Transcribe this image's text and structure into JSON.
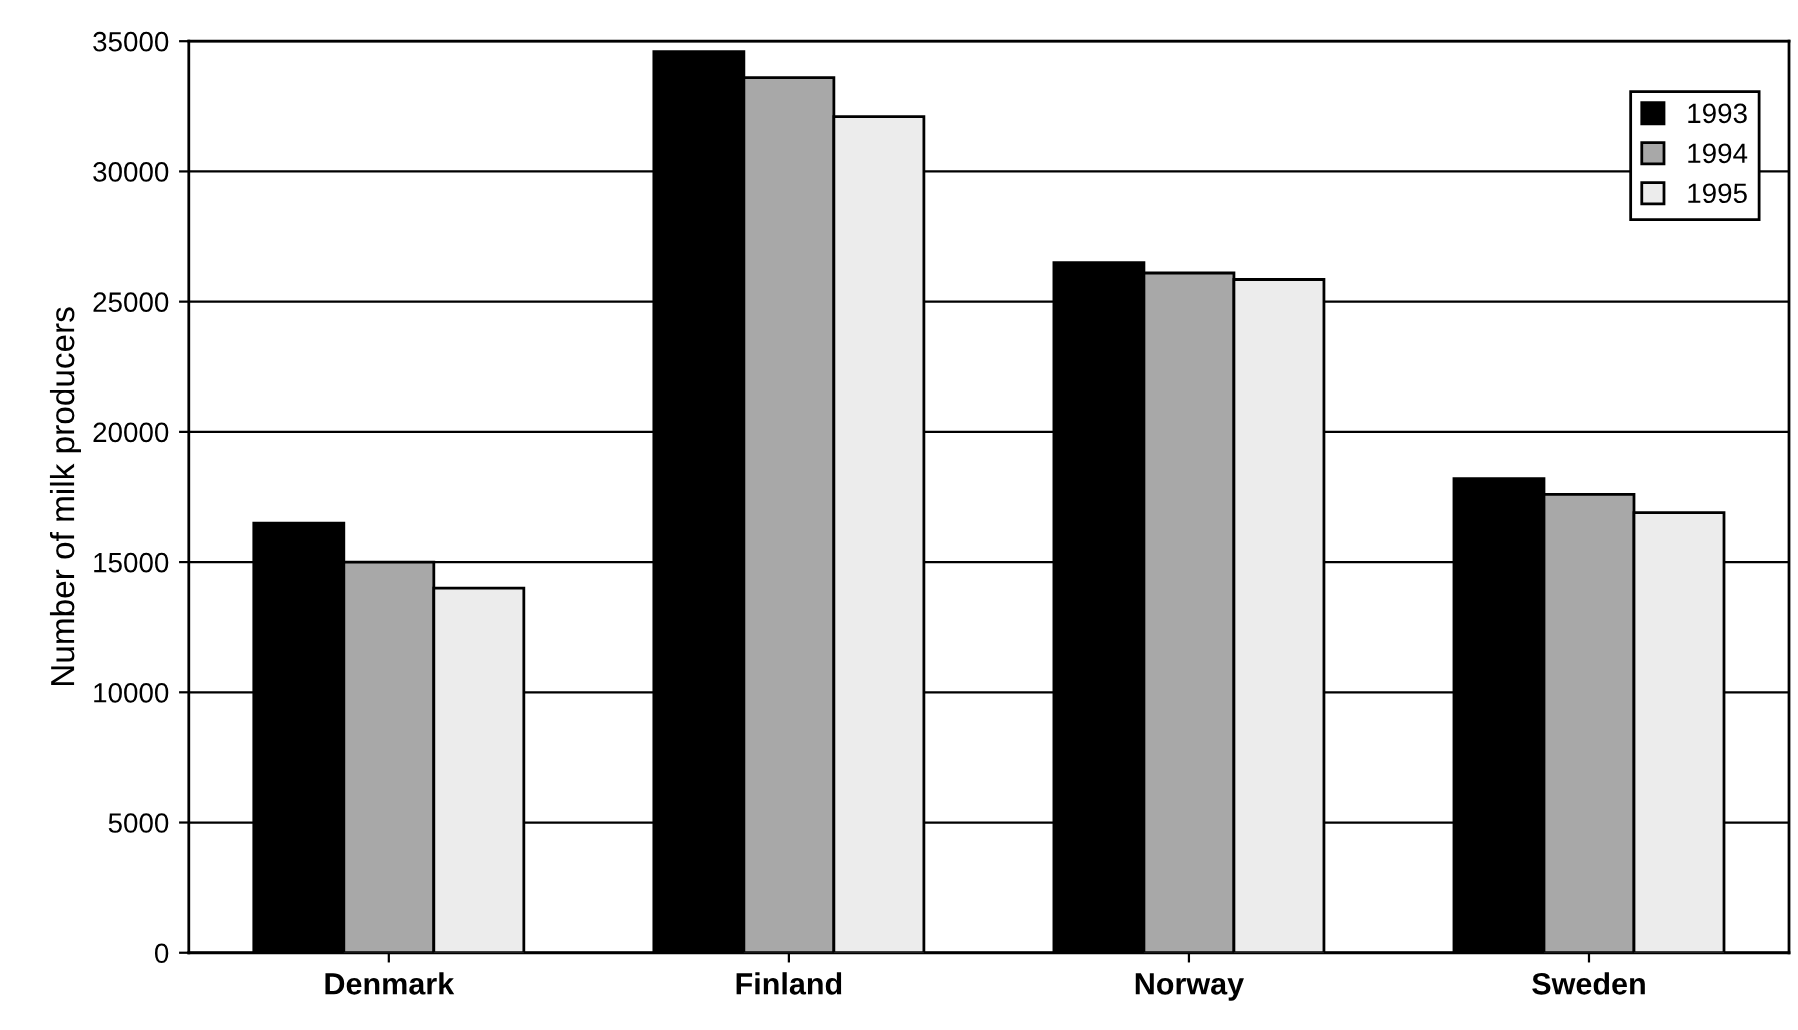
{
  "chart_data": {
    "type": "bar",
    "ylabel": "Number of milk producers",
    "categories": [
      "Denmark",
      "Finland",
      "Norway",
      "Sweden"
    ],
    "series": [
      {
        "name": "1993",
        "color": "#000000",
        "values": [
          16500,
          34600,
          26500,
          18200
        ]
      },
      {
        "name": "1994",
        "color": "#a8a8a8",
        "values": [
          15000,
          33600,
          26100,
          17600
        ]
      },
      {
        "name": "1995",
        "color": "#ececec",
        "values": [
          14000,
          32100,
          25850,
          16900
        ]
      }
    ],
    "ylim": [
      0,
      35000
    ],
    "yticks": [
      0,
      5000,
      10000,
      15000,
      20000,
      25000,
      30000,
      35000
    ],
    "grid": "y",
    "legend": "top right"
  }
}
